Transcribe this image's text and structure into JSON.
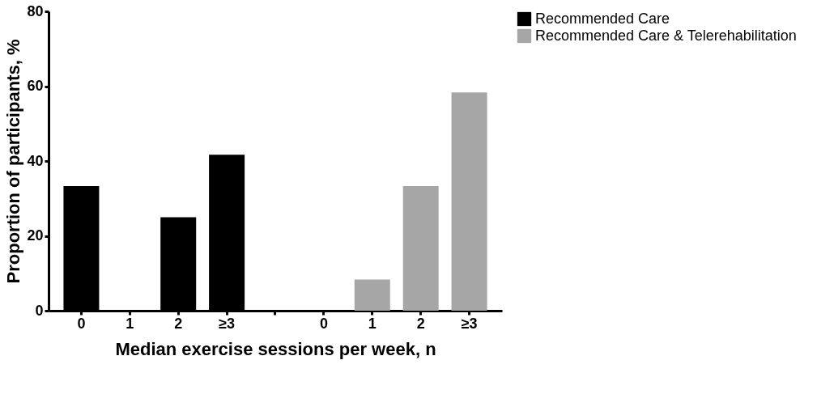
{
  "chart_data": {
    "type": "bar",
    "xlabel": "Median exercise sessions per week, n",
    "ylabel": "Proportion of participants, %",
    "categories": [
      "0",
      "1",
      "2",
      "≥3",
      null,
      "0",
      "1",
      "2",
      "≥3"
    ],
    "series": [
      {
        "name": "Recommended Care",
        "color": "#000000",
        "values": [
          33.3,
          0,
          25,
          41.7,
          null,
          null,
          null,
          null,
          null
        ]
      },
      {
        "name": "Recommended Care & Telerehabilitation",
        "color": "#a6a6a6",
        "values": [
          null,
          null,
          null,
          null,
          null,
          0,
          8.3,
          33.3,
          58.3
        ]
      }
    ],
    "ylim": [
      0,
      80
    ],
    "yticks": [
      0,
      20,
      40,
      60,
      80
    ],
    "grid": false,
    "legend": "right"
  }
}
